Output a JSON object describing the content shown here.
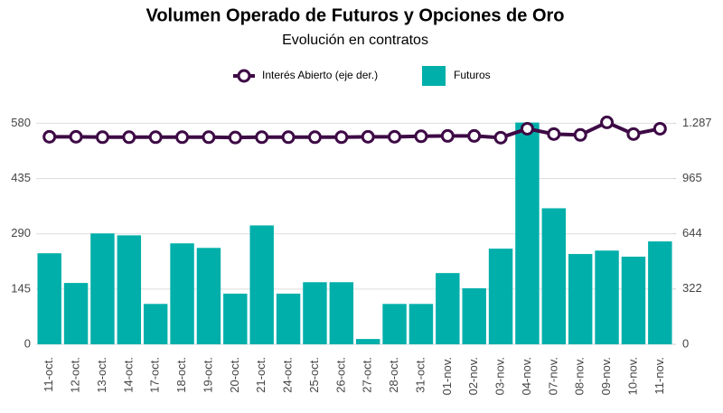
{
  "chart_data": {
    "type": "bar",
    "title": "Volumen Operado de Futuros y Opciones de Oro",
    "subtitle": "Evolución en contratos",
    "categories": [
      "11-oct.",
      "12-oct.",
      "13-oct.",
      "14-oct.",
      "17-oct.",
      "18-oct.",
      "19-oct.",
      "20-oct.",
      "21-oct.",
      "24-oct.",
      "25-oct.",
      "26-oct.",
      "27-oct.",
      "28-oct.",
      "31-oct.",
      "01-nov.",
      "02-nov.",
      "03-nov.",
      "04-nov.",
      "07-nov.",
      "08-nov.",
      "09-nov.",
      "10-nov.",
      "11-nov."
    ],
    "series": [
      {
        "name": "Futuros",
        "type": "bar",
        "color": "#00afaa",
        "values": [
          239,
          161,
          291,
          286,
          106,
          265,
          253,
          133,
          312,
          133,
          163,
          163,
          14,
          106,
          106,
          187,
          147,
          251,
          582,
          357,
          237,
          246,
          230,
          270
        ]
      },
      {
        "name": "Interés Abierto (eje der.)",
        "type": "line",
        "axis": "y2",
        "color": "#3d0a45",
        "values": [
          1208,
          1208,
          1206,
          1206,
          1206,
          1206,
          1206,
          1204,
          1206,
          1206,
          1206,
          1206,
          1208,
          1208,
          1211,
          1213,
          1213,
          1203,
          1255,
          1224,
          1219,
          1292,
          1224,
          1255
        ]
      }
    ],
    "ylim": [
      0,
      600
    ],
    "yticks": [
      0,
      145,
      290,
      435,
      580
    ],
    "y2lim": [
      0,
      1331
    ],
    "y2ticks": [
      0,
      322,
      644,
      965,
      {
        "value": 1287,
        "label": "1.287"
      }
    ],
    "grid": true
  }
}
